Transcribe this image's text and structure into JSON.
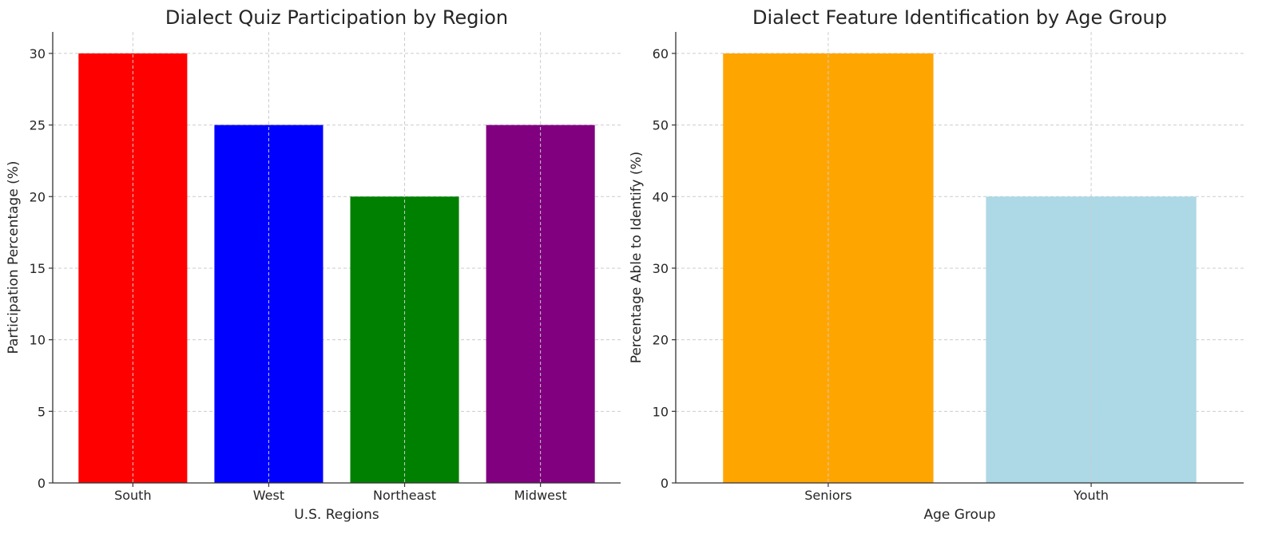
{
  "chart_data": [
    {
      "type": "bar",
      "title": "Dialect Quiz Participation by Region",
      "xlabel": "U.S. Regions",
      "ylabel": "Participation Percentage (%)",
      "categories": [
        "South",
        "West",
        "Northeast",
        "Midwest"
      ],
      "values": [
        30,
        25,
        20,
        25
      ],
      "colors": [
        "#ff0000",
        "#0000ff",
        "#008000",
        "#800080"
      ],
      "ylim": [
        0,
        31.5
      ],
      "yticks": [
        0,
        5,
        10,
        15,
        20,
        25,
        30
      ],
      "grid": true
    },
    {
      "type": "bar",
      "title": "Dialect Feature Identification by Age Group",
      "xlabel": "Age Group",
      "ylabel": "Percentage Able to Identify (%)",
      "categories": [
        "Seniors",
        "Youth"
      ],
      "values": [
        60,
        40
      ],
      "colors": [
        "#ffa500",
        "#add8e6"
      ],
      "ylim": [
        0,
        63
      ],
      "yticks": [
        0,
        10,
        20,
        30,
        40,
        50,
        60
      ],
      "grid": true
    }
  ]
}
